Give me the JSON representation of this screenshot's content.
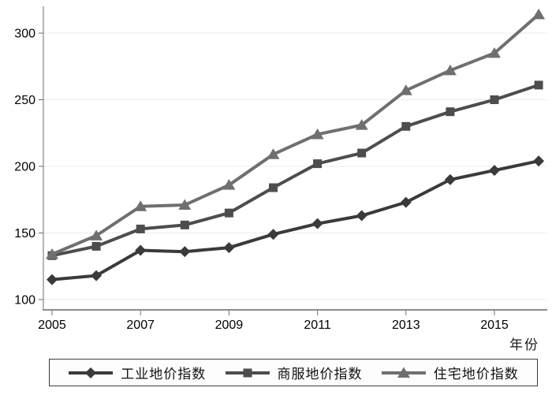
{
  "figure": {
    "background": "#ffffff",
    "xlabel": "年份"
  },
  "chart_data": {
    "type": "line",
    "title": "",
    "xlabel": "年份",
    "ylabel": "",
    "x": [
      2005,
      2006,
      2007,
      2008,
      2009,
      2010,
      2011,
      2012,
      2013,
      2014,
      2015,
      2016
    ],
    "x_ticks": [
      2005,
      2007,
      2009,
      2011,
      2013,
      2015
    ],
    "x_tick_labels": [
      "2005",
      "2007",
      "2009",
      "2011",
      "2013",
      "2015"
    ],
    "y_ticks": [
      100,
      150,
      200,
      250,
      300
    ],
    "y_tick_labels": [
      "100",
      "150",
      "200",
      "250",
      "300"
    ],
    "ylim": [
      91,
      321
    ],
    "xlim": [
      2004.8,
      2016.4
    ],
    "grid": true,
    "legend_position": "bottom",
    "series": [
      {
        "name": "工业地价指数",
        "marker": "diamond",
        "color": "#3a3a3a",
        "values": [
          115,
          118,
          137,
          136,
          139,
          149,
          157,
          163,
          173,
          190,
          197,
          204
        ]
      },
      {
        "name": "商服地价指数",
        "marker": "square",
        "color": "#4d4d4d",
        "values": [
          133,
          140,
          153,
          156,
          165,
          184,
          202,
          210,
          230,
          241,
          250,
          261
        ]
      },
      {
        "name": "住宅地价指数",
        "marker": "triangle",
        "color": "#6f6f6f",
        "values": [
          134,
          148,
          170,
          171,
          186,
          209,
          224,
          231,
          257,
          272,
          285,
          314
        ]
      }
    ]
  },
  "styles": {
    "grid_color": "#ebebeb",
    "y_axis_color": "#6e6e6e",
    "x_axis_color": "#8c8c8c",
    "tick_color": "#6e6e6e",
    "tick_label_color": "#000000",
    "legend_border_color": "#3c3c3c",
    "legend_background": "#fdfdfd"
  }
}
